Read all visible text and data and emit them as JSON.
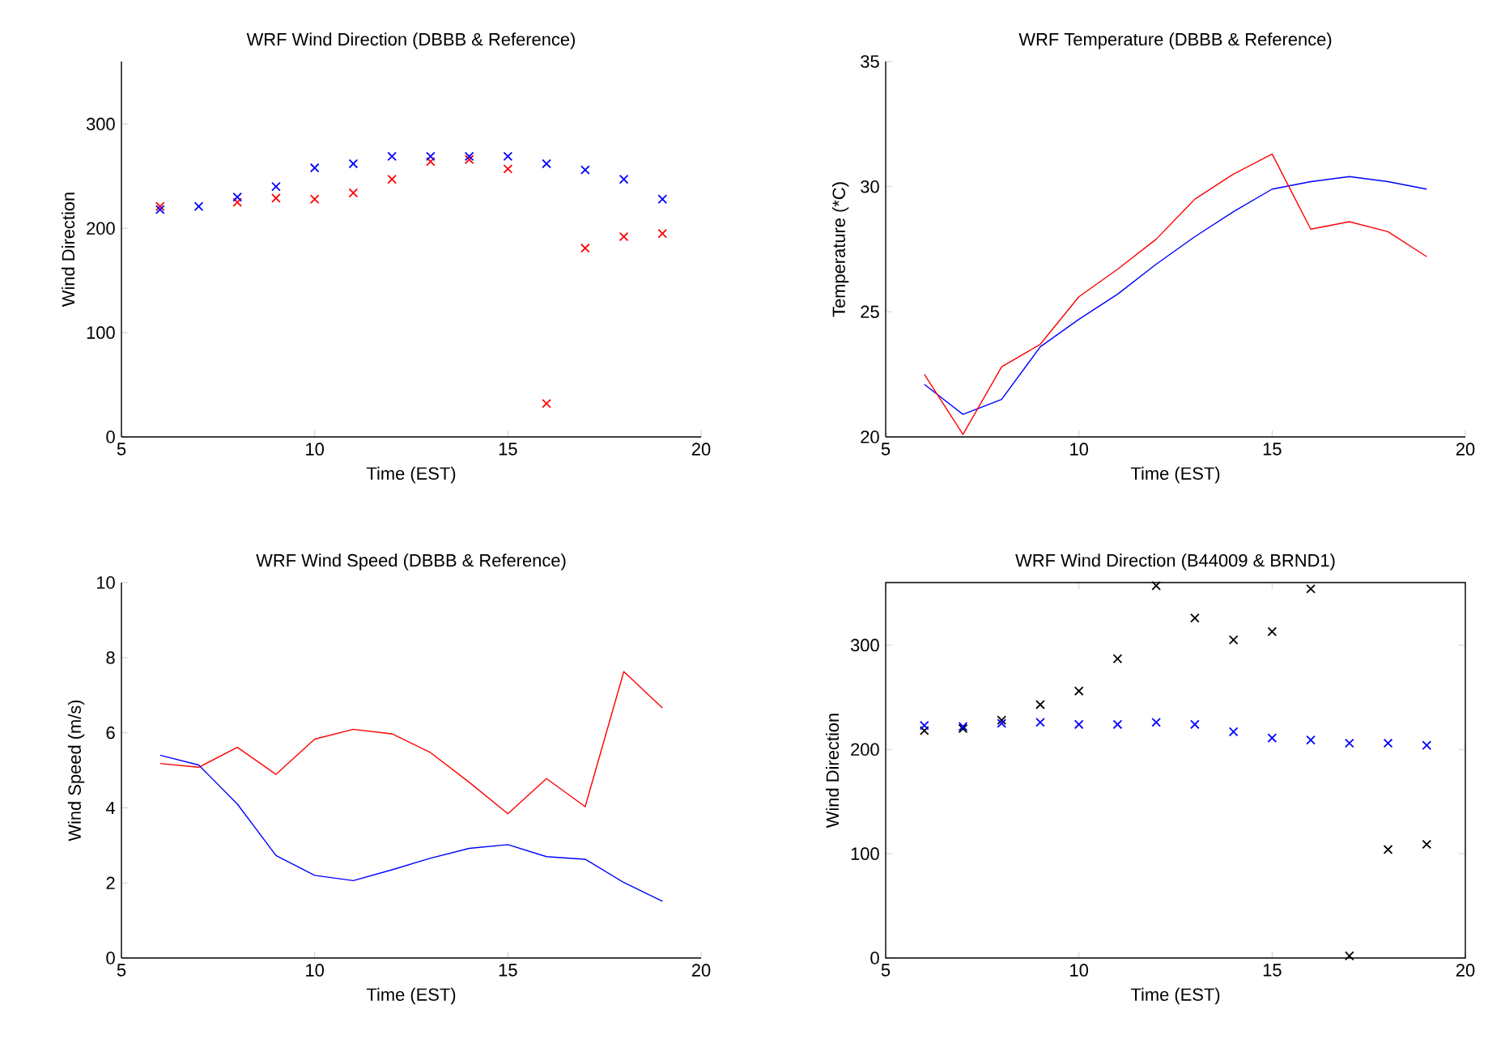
{
  "chart_data": [
    {
      "type": "scatter",
      "title": "WRF Wind Direction (DBBB & Reference)",
      "xlabel": "Time (EST)",
      "ylabel": "Wind Direction",
      "x": [
        6,
        7,
        8,
        9,
        10,
        11,
        12,
        13,
        14,
        15,
        16,
        17,
        18,
        19
      ],
      "xlim": [
        5,
        20
      ],
      "ylim": [
        0,
        360
      ],
      "xticks": [
        5,
        10,
        15,
        20
      ],
      "yticks": [
        0,
        100,
        200,
        300
      ],
      "marker": "cross",
      "series": [
        {
          "color": "#ff0000",
          "values": [
            221,
            null,
            225,
            229,
            228,
            234,
            247,
            264,
            266,
            257,
            32,
            181,
            192,
            195
          ]
        },
        {
          "color": "#0000ff",
          "values": [
            218,
            221,
            230,
            240,
            258,
            262,
            269,
            269,
            269,
            269,
            262,
            256,
            247,
            228
          ]
        }
      ]
    },
    {
      "type": "line",
      "title": "WRF Temperature (DBBB & Reference)",
      "xlabel": "Time (EST)",
      "ylabel": "Temperature (*C)",
      "x": [
        6,
        7,
        8,
        9,
        10,
        11,
        12,
        13,
        14,
        15,
        16,
        17,
        18,
        19
      ],
      "xlim": [
        5,
        20
      ],
      "ylim": [
        20,
        35
      ],
      "xticks": [
        5,
        10,
        15,
        20
      ],
      "yticks": [
        20,
        25,
        30,
        35
      ],
      "marker": "none",
      "line_style": "solid",
      "series": [
        {
          "color": "#0000ff",
          "values": [
            22.1,
            20.9,
            21.5,
            23.6,
            24.7,
            25.7,
            26.9,
            28.0,
            29.0,
            29.9,
            30.2,
            30.4,
            30.2,
            29.9
          ]
        },
        {
          "color": "#ff0000",
          "values": [
            22.5,
            20.1,
            22.8,
            23.7,
            25.6,
            26.7,
            27.9,
            29.5,
            30.5,
            31.3,
            28.3,
            28.6,
            28.2,
            27.2
          ]
        }
      ]
    },
    {
      "type": "line",
      "title": "WRF Wind Speed (DBBB & Reference)",
      "xlabel": "Time (EST)",
      "ylabel": "Wind Speed (m/s)",
      "x": [
        6,
        7,
        8,
        9,
        10,
        11,
        12,
        13,
        14,
        15,
        16,
        17,
        18,
        19
      ],
      "xlim": [
        5,
        20
      ],
      "ylim": [
        0,
        10
      ],
      "xticks": [
        5,
        10,
        15,
        20
      ],
      "yticks": [
        0,
        2,
        4,
        6,
        8,
        10
      ],
      "marker": "none",
      "line_style": "solid",
      "series": [
        {
          "color": "#ff0000",
          "values": [
            5.18,
            5.08,
            5.61,
            4.89,
            5.83,
            6.09,
            5.97,
            5.47,
            4.68,
            3.84,
            4.78,
            4.03,
            7.63,
            6.66
          ]
        },
        {
          "color": "#0000ff",
          "values": [
            5.4,
            5.14,
            4.1,
            2.73,
            2.2,
            2.06,
            2.35,
            2.66,
            2.92,
            3.02,
            2.7,
            2.63,
            2.01,
            1.51
          ]
        }
      ]
    },
    {
      "type": "scatter",
      "title": "WRF Wind Direction (B44009 & BRND1)",
      "xlabel": "Time (EST)",
      "ylabel": "Wind Direction",
      "x": [
        6,
        7,
        8,
        9,
        10,
        11,
        12,
        13,
        14,
        15,
        16,
        17,
        18,
        19
      ],
      "xlim": [
        5,
        20
      ],
      "ylim": [
        0,
        360
      ],
      "xticks": [
        5,
        10,
        15,
        20
      ],
      "yticks": [
        0,
        100,
        200,
        300
      ],
      "marker": "cross",
      "series": [
        {
          "color": "#000000",
          "values": [
            218,
            220,
            228,
            243,
            256,
            287,
            357,
            326,
            305,
            313,
            354,
            2,
            104,
            109
          ]
        },
        {
          "color": "#0000ff",
          "values": [
            223,
            222,
            225,
            226,
            224,
            224,
            226,
            224,
            217,
            211,
            209,
            206,
            206,
            204
          ]
        }
      ]
    }
  ]
}
